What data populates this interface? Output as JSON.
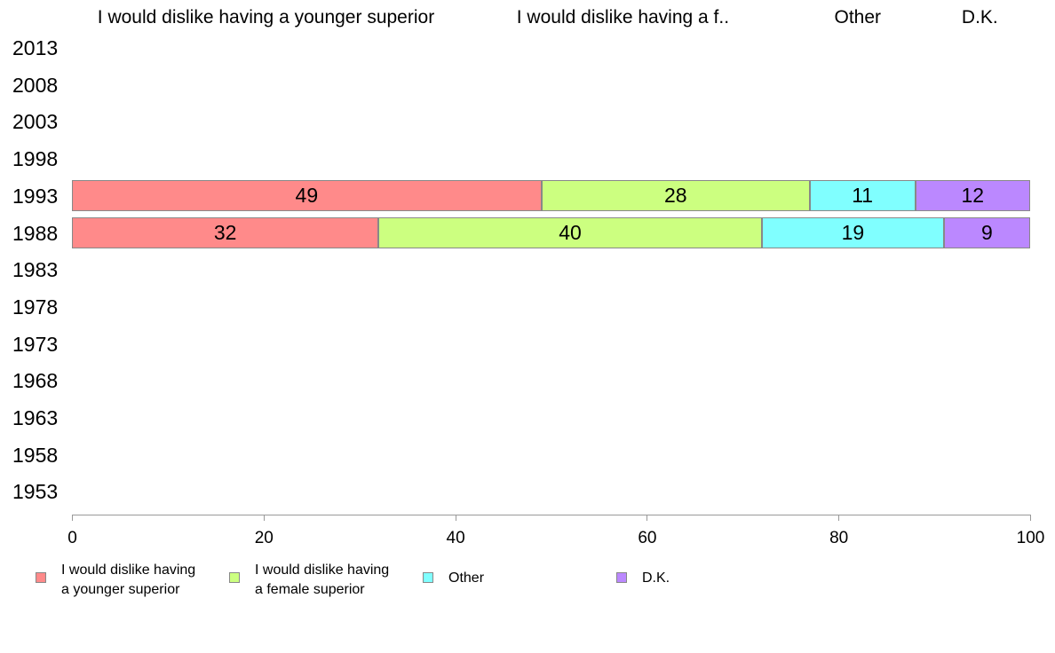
{
  "chart_data": {
    "type": "bar",
    "orientation": "horizontal",
    "stacked": true,
    "categories": [
      "2013",
      "2008",
      "2003",
      "1998",
      "1993",
      "1988",
      "1983",
      "1978",
      "1973",
      "1968",
      "1963",
      "1958",
      "1953"
    ],
    "series": [
      {
        "name": "I would dislike having a younger superior",
        "header": "I would dislike having a younger superior",
        "legend": [
          "I would dislike having",
          "a younger superior"
        ],
        "color": "#ff8a8a",
        "values": [
          null,
          null,
          null,
          null,
          49,
          32,
          null,
          null,
          null,
          null,
          null,
          null,
          null
        ]
      },
      {
        "name": "I would dislike having a female superior",
        "header": "I would dislike having a f..",
        "legend": [
          "I would dislike having",
          "a female superior"
        ],
        "color": "#ccff80",
        "values": [
          null,
          null,
          null,
          null,
          28,
          40,
          null,
          null,
          null,
          null,
          null,
          null,
          null
        ]
      },
      {
        "name": "Other",
        "header": "Other",
        "legend": [
          "Other"
        ],
        "color": "#80ffff",
        "values": [
          null,
          null,
          null,
          null,
          11,
          19,
          null,
          null,
          null,
          null,
          null,
          null,
          null
        ]
      },
      {
        "name": "D.K.",
        "header": "D.K.",
        "legend": [
          "D.K."
        ],
        "color": "#bb88ff",
        "values": [
          null,
          null,
          null,
          null,
          12,
          9,
          null,
          null,
          null,
          null,
          null,
          null,
          null
        ]
      }
    ],
    "xlim": [
      0,
      100
    ],
    "xticks": [
      0,
      20,
      40,
      60,
      80,
      100
    ],
    "legend_position": "bottom",
    "grid": false
  }
}
